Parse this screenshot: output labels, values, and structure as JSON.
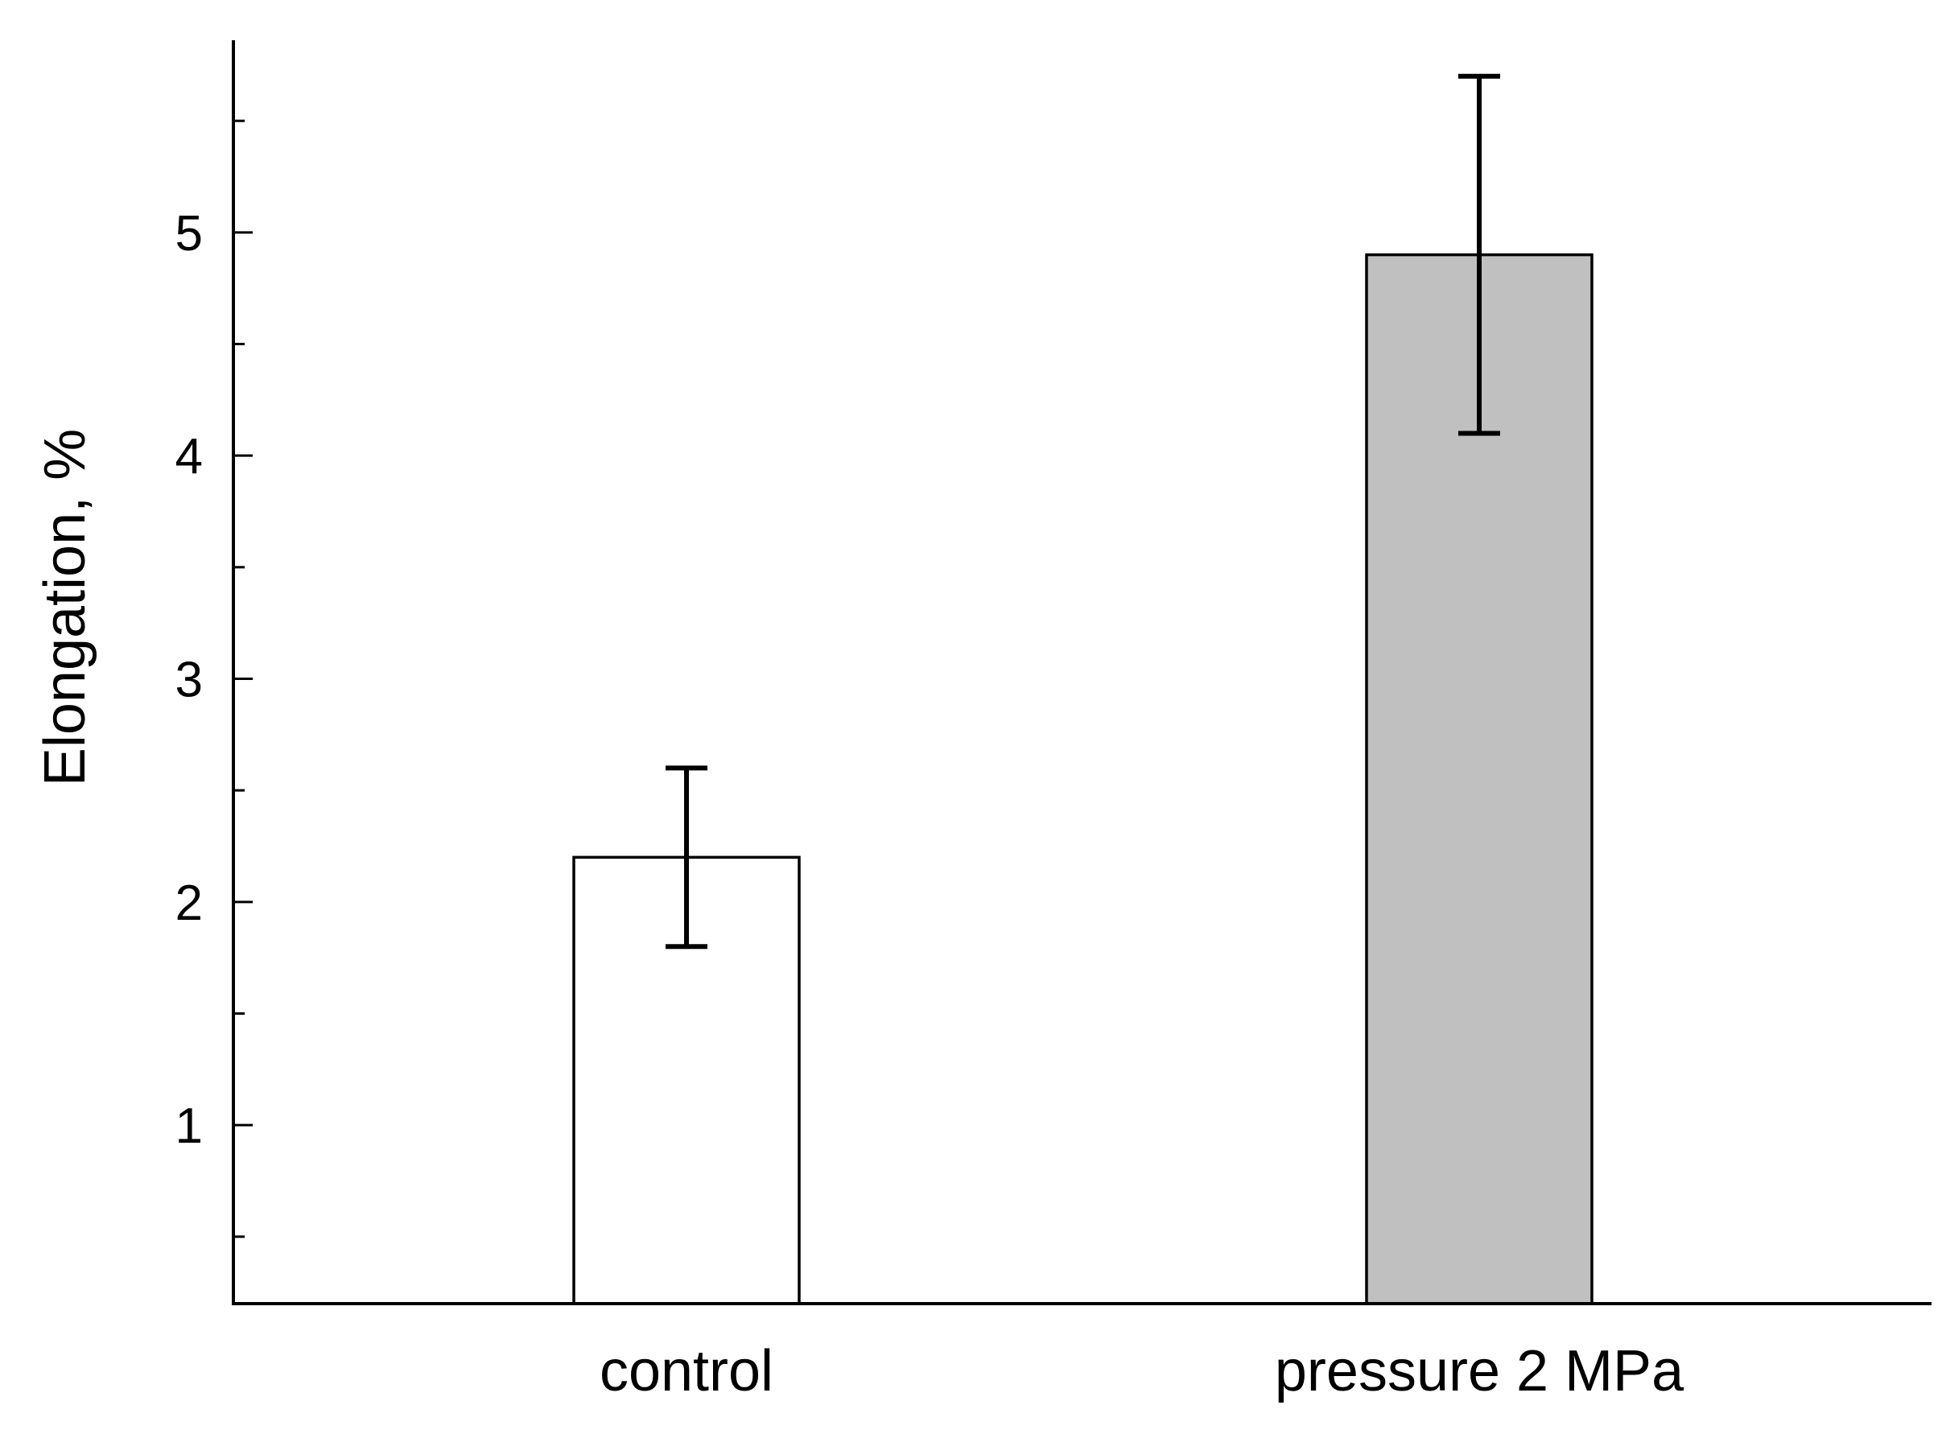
{
  "chart_data": {
    "type": "bar",
    "title": "",
    "xlabel": "",
    "ylabel": "Elongation, %",
    "categories": [
      "control",
      "pressure 2 MPa"
    ],
    "values": [
      2.2,
      4.9
    ],
    "errors_low": [
      1.8,
      4.1
    ],
    "errors_high": [
      2.6,
      5.7
    ],
    "bar_colors": [
      "#ffffff",
      "#c0c0c0"
    ],
    "ylim": [
      0.2,
      5.8
    ],
    "yticks": [
      1,
      2,
      3,
      4,
      5
    ],
    "yticks_minor": [
      0.5,
      1.5,
      2.5,
      3.5,
      4.5,
      5.5
    ],
    "grid": false,
    "legend": "none"
  }
}
